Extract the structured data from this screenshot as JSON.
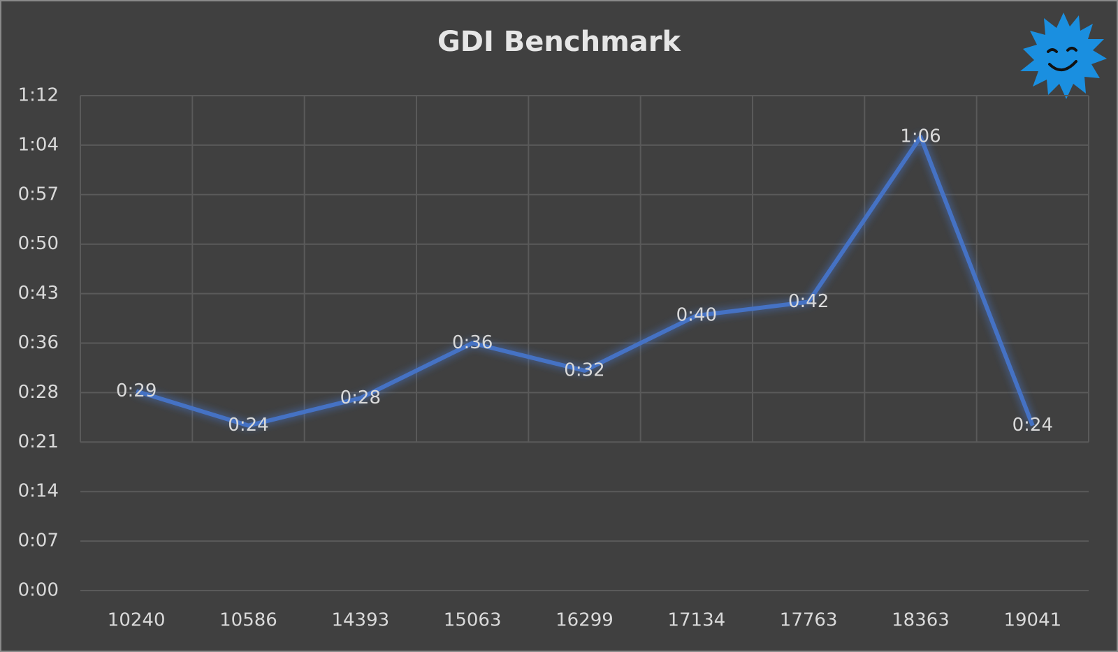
{
  "chart_data": {
    "type": "line",
    "title": "GDI Benchmark",
    "categories": [
      "10240",
      "10586",
      "14393",
      "15063",
      "16299",
      "17134",
      "17763",
      "18363",
      "19041"
    ],
    "series": [
      {
        "name": "GDI Benchmark",
        "color": "#4472c4",
        "values": [
          29,
          24,
          28,
          36,
          32,
          40,
          42,
          66,
          24
        ],
        "value_labels": [
          "0:29",
          "0:24",
          "0:28",
          "0:36",
          "0:32",
          "0:40",
          "0:42",
          "1:06",
          "0:24"
        ]
      }
    ],
    "ylim": [
      0,
      72
    ],
    "yticks": [
      {
        "value": 0,
        "label": "0:00"
      },
      {
        "value": 7.2,
        "label": "0:07"
      },
      {
        "value": 14.4,
        "label": "0:14"
      },
      {
        "value": 21.6,
        "label": "0:21"
      },
      {
        "value": 28.8,
        "label": "0:28"
      },
      {
        "value": 36,
        "label": "0:36"
      },
      {
        "value": 43.2,
        "label": "0:43"
      },
      {
        "value": 50.4,
        "label": "0:50"
      },
      {
        "value": 57.6,
        "label": "0:57"
      },
      {
        "value": 64.8,
        "label": "1:04"
      },
      {
        "value": 72,
        "label": "1:12"
      }
    ],
    "grid": true
  }
}
